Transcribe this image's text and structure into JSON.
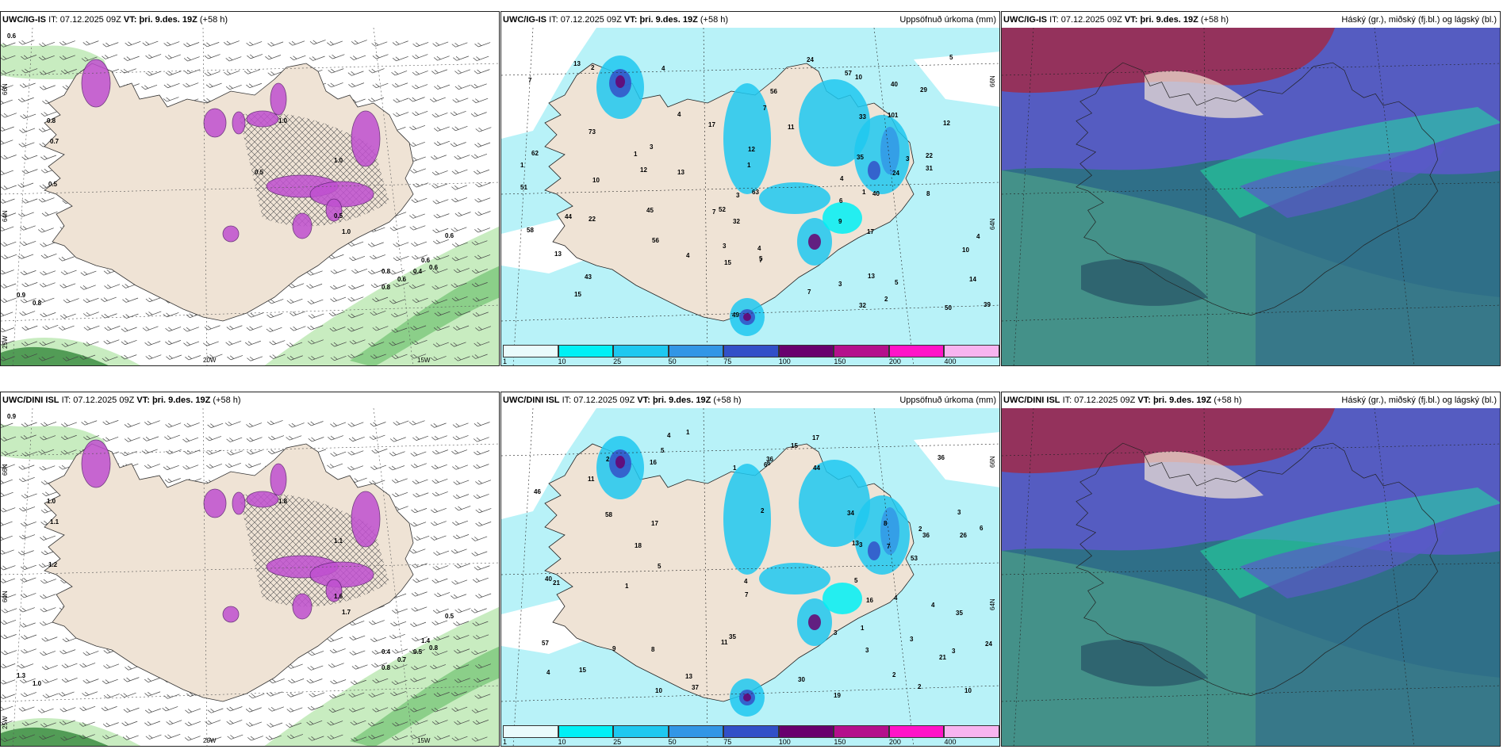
{
  "panels": [
    {
      "id": "ig-wind",
      "model": "UWC/IG-IS",
      "it_label": "IT:",
      "it": "07.12.2025 09Z",
      "vt_label": "VT:",
      "vt": "þri. 9.des. 19Z",
      "lead": "(+58 h)",
      "right_title": "",
      "axes": {
        "lon_labels": [
          "20W",
          "15W"
        ],
        "lat_labels": [
          "66N",
          "64N",
          "25W"
        ]
      },
      "values": [
        "0.6",
        "0.8",
        "0.7",
        "0.5",
        "0.9",
        "0.8",
        "0.6",
        "0.6",
        "0.8",
        "0.6",
        "0.4",
        "0.6",
        "0.8",
        "1.0",
        "0.5",
        "1.0",
        "1.0",
        "0.5"
      ]
    },
    {
      "id": "ig-precip",
      "model": "UWC/IG-IS",
      "it_label": "IT:",
      "it": "07.12.2025 09Z",
      "vt_label": "VT:",
      "vt": "þri. 9.des. 19Z",
      "lead": "(+58 h)",
      "right_title": "Uppsöfnuð úrkoma (mm)",
      "axes": {
        "lat_labels": [
          "66N",
          "64N"
        ]
      },
      "values": [
        "9",
        "4",
        "3",
        "10",
        "3",
        "101",
        "22",
        "12",
        "14",
        "2",
        "1",
        "6",
        "58",
        "17",
        "56",
        "50",
        "29",
        "44",
        "40",
        "17",
        "32",
        "51",
        "35",
        "57",
        "31",
        "43",
        "73",
        "33",
        "39",
        "22",
        "12",
        "24",
        "62",
        "13",
        "13",
        "15",
        "11",
        "63",
        "40",
        "32",
        "52",
        "45",
        "56",
        "49",
        "1",
        "4",
        "5",
        "3",
        "3",
        "2",
        "3",
        "1",
        "1",
        "5",
        "7",
        "12",
        "10",
        "13",
        "24",
        "5",
        "8",
        "15",
        "7",
        "7",
        "7",
        "13",
        "4",
        "4",
        "4",
        "7",
        "4",
        "10"
      ],
      "colorbar": {
        "ticks": [
          "1",
          "10",
          "25",
          "50",
          "75",
          "100",
          "150",
          "200",
          "400"
        ],
        "colors": [
          "#e9fbfc",
          "#00f0f5",
          "#1ec8f0",
          "#3296e6",
          "#3250c8",
          "#69006e",
          "#b4108c",
          "#ff14c8",
          "#f8b4f0"
        ]
      }
    },
    {
      "id": "ig-cloud",
      "model": "UWC/IG-IS",
      "it_label": "IT:",
      "it": "07.12.2025 09Z",
      "vt_label": "VT:",
      "vt": "þri. 9.des. 19Z",
      "lead": "(+58 h)",
      "right_title": "Háský (gr.), miðský (fj.bl.) og lágský (bl.)"
    },
    {
      "id": "dini-wind",
      "model": "UWC/DINI ISL",
      "it_label": "IT:",
      "it": "07.12.2025 09Z",
      "vt_label": "VT:",
      "vt": "þri. 9.des. 19Z",
      "lead": "(+58 h)",
      "right_title": "",
      "axes": {
        "lon_labels": [
          "20W",
          "15W"
        ],
        "lat_labels": [
          "66N",
          "64N",
          "25W"
        ]
      },
      "values": [
        "0.9",
        "1.0",
        "1.1",
        "1.2",
        "1.3",
        "1.0",
        "0.5",
        "0.8",
        "0.4",
        "0.7",
        "0.5",
        "1.4",
        "0.8",
        "1.7",
        "1.6",
        "1.8",
        "1.1"
      ]
    },
    {
      "id": "dini-precip",
      "model": "UWC/DINI ISL",
      "it_label": "IT:",
      "it": "07.12.2025 09Z",
      "vt_label": "VT:",
      "vt": "þri. 9.des. 19Z",
      "lead": "(+58 h)",
      "right_title": "Uppsöfnuð úrkoma (mm)",
      "axes": {
        "lat_labels": [
          "66N",
          "64N"
        ]
      },
      "values": [
        "3",
        "3",
        "3",
        "2",
        "4",
        "5",
        "2",
        "8",
        "36",
        "58",
        "26",
        "46",
        "53",
        "37",
        "57",
        "11",
        "21",
        "16",
        "35",
        "36",
        "40",
        "21",
        "30",
        "13",
        "13",
        "11",
        "15",
        "44",
        "34",
        "24",
        "1",
        "3",
        "10",
        "4",
        "4",
        "2",
        "3",
        "1",
        "2",
        "5",
        "4",
        "7",
        "6",
        "18",
        "35",
        "16",
        "15",
        "17",
        "17",
        "8",
        "9",
        "7",
        "6",
        "6",
        "3",
        "5",
        "4",
        "2",
        "19",
        "36",
        "1",
        "1",
        "10"
      ],
      "colorbar": {
        "ticks": [
          "1",
          "10",
          "25",
          "50",
          "75",
          "100",
          "150",
          "200",
          "400"
        ],
        "colors": [
          "#e9fbfc",
          "#00f0f5",
          "#1ec8f0",
          "#3296e6",
          "#3250c8",
          "#69006e",
          "#b4108c",
          "#ff14c8",
          "#f8b4f0"
        ]
      }
    },
    {
      "id": "dini-cloud",
      "model": "UWC/DINI ISL",
      "it_label": "IT:",
      "it": "07.12.2025 09Z",
      "vt_label": "VT:",
      "vt": "þri. 9.des. 19Z",
      "lead": "(+58 h)",
      "right_title": "Háský (gr.), miðský (fj.bl.) og lágský (bl.)"
    }
  ],
  "colors": {
    "land": "#efe3d5",
    "sea_light": "#b8f2f8",
    "wind_green_light": "#c8ecc0",
    "wind_green_dark": "#1f7a2a",
    "precip_purple": "#c050d0",
    "cloud_teal": "#4a9a8a",
    "cloud_blue": "#5a5ac8",
    "cloud_red": "#a02a4a",
    "cloud_green": "#20e0a0"
  }
}
